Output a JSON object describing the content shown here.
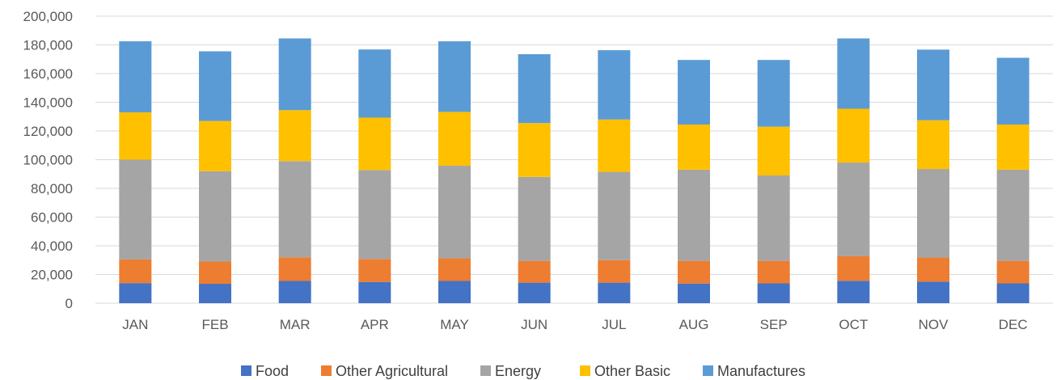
{
  "chart_data": {
    "type": "bar",
    "stacked": true,
    "title": "",
    "xlabel": "",
    "ylabel": "",
    "categories": [
      "JAN",
      "FEB",
      "MAR",
      "APR",
      "MAY",
      "JUN",
      "JUL",
      "AUG",
      "SEP",
      "OCT",
      "NOV",
      "DEC"
    ],
    "ylim": [
      0,
      200000
    ],
    "y_ticks": [
      0,
      20000,
      40000,
      60000,
      80000,
      100000,
      120000,
      140000,
      160000,
      180000,
      200000
    ],
    "y_tick_labels": [
      "0",
      "20,000",
      "40,000",
      "60,000",
      "80,000",
      "100,000",
      "120,000",
      "140,000",
      "160,000",
      "180,000",
      "200,000"
    ],
    "grid": true,
    "legend_position": "bottom",
    "series": [
      {
        "name": "Food",
        "color": "#4472C4",
        "values": [
          14000,
          13500,
          15500,
          14800,
          15500,
          14300,
          14300,
          13700,
          13800,
          15600,
          15000,
          13800
        ]
      },
      {
        "name": "Other Agricultural",
        "color": "#ED7D31",
        "values": [
          16500,
          15500,
          16500,
          16000,
          15800,
          15200,
          15700,
          15800,
          15700,
          17100,
          16800,
          15700
        ]
      },
      {
        "name": "Energy",
        "color": "#A5A5A5",
        "values": [
          69500,
          63000,
          67000,
          62000,
          64500,
          58500,
          61500,
          63500,
          59500,
          65300,
          61700,
          63500
        ]
      },
      {
        "name": "Other Basic",
        "color": "#FFC000",
        "values": [
          33000,
          35000,
          35500,
          36500,
          37500,
          37500,
          36500,
          31500,
          34000,
          37500,
          34000,
          31500
        ]
      },
      {
        "name": "Manufactures",
        "color": "#5B9BD5",
        "values": [
          49500,
          48500,
          50000,
          47500,
          49200,
          48000,
          48300,
          45000,
          46500,
          49000,
          49200,
          46500
        ]
      }
    ]
  }
}
